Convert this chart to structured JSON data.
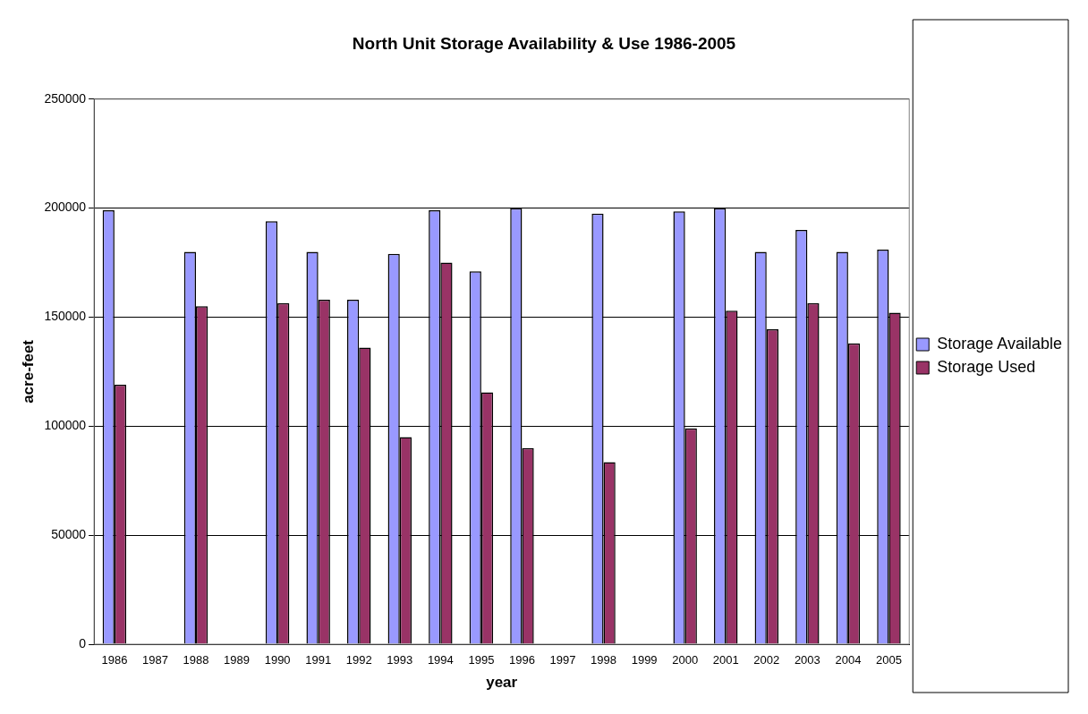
{
  "chart_data": {
    "type": "bar",
    "title": "North Unit Storage Availability & Use 1986-2005",
    "xlabel": "year",
    "ylabel": "acre-feet",
    "categories": [
      "1986",
      "1987",
      "1988",
      "1989",
      "1990",
      "1991",
      "1992",
      "1993",
      "1994",
      "1995",
      "1996",
      "1997",
      "1998",
      "1999",
      "2000",
      "2001",
      "2002",
      "2003",
      "2004",
      "2005"
    ],
    "series": [
      {
        "name": "Storage Available",
        "color": "#9999ff",
        "values": [
          199000,
          null,
          180000,
          null,
          194000,
          180000,
          158000,
          179000,
          199000,
          171000,
          200000,
          null,
          197500,
          null,
          198500,
          200000,
          180000,
          190000,
          180000,
          181000
        ]
      },
      {
        "name": "Storage Used",
        "color": "#993366",
        "values": [
          119000,
          null,
          155000,
          null,
          156500,
          158000,
          136000,
          95000,
          175000,
          115500,
          90000,
          null,
          83500,
          null,
          99000,
          153000,
          144500,
          156500,
          138000,
          152000
        ]
      }
    ],
    "ylim": [
      0,
      250000
    ],
    "yticks": [
      0,
      50000,
      100000,
      150000,
      200000,
      250000
    ],
    "grid": "y",
    "legend": "right"
  }
}
